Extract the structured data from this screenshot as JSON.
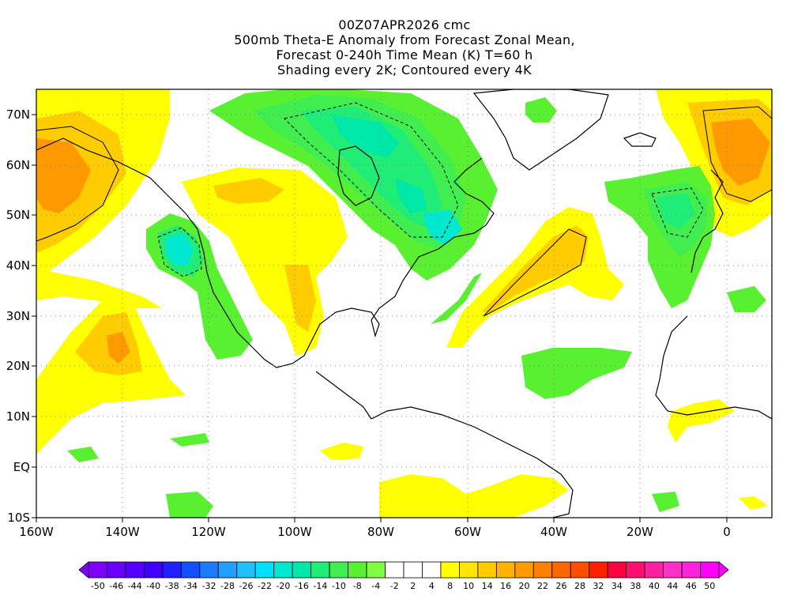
{
  "title": {
    "line1": "00Z07APR2026 cmc",
    "line2": "500mb Theta-E Anomaly from Forecast Zonal Mean,",
    "line3": "Forecast 0-240h Time Mean (K) T=60 h",
    "line4": "Shading every 2K; Contoured every 4K"
  },
  "map": {
    "lon_range": [
      -160,
      10
    ],
    "lat_range": [
      -10,
      75
    ],
    "x_ticks": [
      "160W",
      "140W",
      "120W",
      "100W",
      "80W",
      "60W",
      "40W",
      "20W",
      "0"
    ],
    "y_ticks": [
      "70N",
      "60N",
      "50N",
      "40N",
      "30N",
      "20N",
      "10N",
      "EQ",
      "10S"
    ],
    "grid": "dotted",
    "field": "Theta-E anomaly (K)"
  },
  "colorbar": {
    "labels": [
      "-50",
      "-46",
      "-44",
      "-40",
      "-38",
      "-34",
      "-32",
      "-28",
      "-26",
      "-22",
      "-20",
      "-16",
      "-14",
      "-10",
      "-8",
      "-4",
      "-2",
      "2",
      "4",
      "8",
      "10",
      "14",
      "16",
      "20",
      "22",
      "26",
      "28",
      "32",
      "34",
      "38",
      "40",
      "44",
      "46",
      "50"
    ],
    "colors": [
      "#7f00ff",
      "#6a00ff",
      "#5500ff",
      "#4000ff",
      "#2020ff",
      "#1050ff",
      "#1a7cff",
      "#20a0ff",
      "#20c0ff",
      "#00e0ff",
      "#00e8d0",
      "#00e8a8",
      "#20ec78",
      "#40ee50",
      "#58f030",
      "#80ff40",
      "#ffffff",
      "#ffffff",
      "#ffffff",
      "#ffff00",
      "#ffe600",
      "#ffcc00",
      "#ffb300",
      "#ff9900",
      "#ff7f00",
      "#ff6600",
      "#ff4d00",
      "#ff2000",
      "#ff0040",
      "#ff1070",
      "#ff20a0",
      "#ff30c8",
      "#ff20e0",
      "#ff00ff"
    ]
  }
}
